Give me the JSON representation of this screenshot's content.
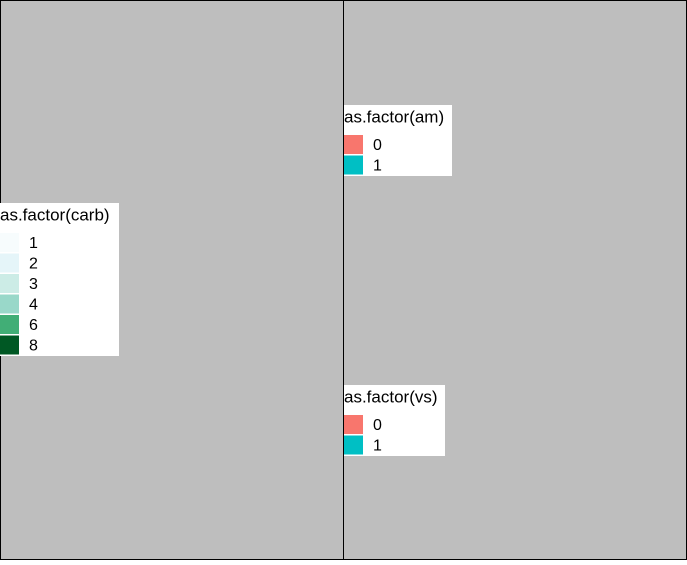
{
  "legends": [
    {
      "title": "as.factor(carb)",
      "items": [
        {
          "label": "1",
          "color": "#f7fcfd"
        },
        {
          "label": "2",
          "color": "#e5f5f9"
        },
        {
          "label": "3",
          "color": "#ccece6"
        },
        {
          "label": "4",
          "color": "#99d8c9"
        },
        {
          "label": "6",
          "color": "#41ae76"
        },
        {
          "label": "8",
          "color": "#005824"
        }
      ]
    },
    {
      "title": "as.factor(am)",
      "items": [
        {
          "label": "0",
          "color": "#f8766d"
        },
        {
          "label": "1",
          "color": "#00bfc4"
        }
      ]
    },
    {
      "title": "as.factor(vs)",
      "items": [
        {
          "label": "0",
          "color": "#f8766d"
        },
        {
          "label": "1",
          "color": "#00bfc4"
        }
      ]
    }
  ]
}
